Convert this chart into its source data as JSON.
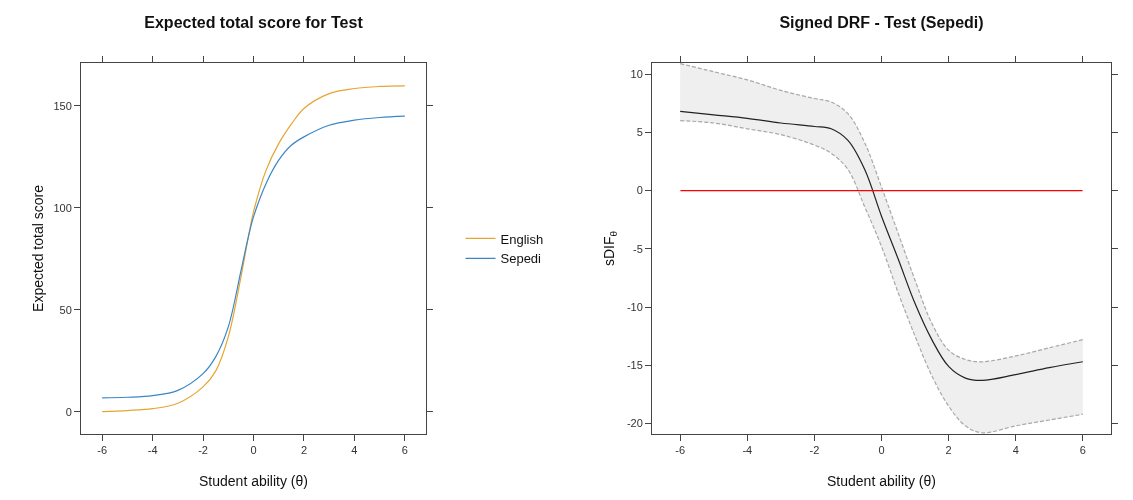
{
  "chart_data": [
    {
      "type": "line",
      "title": "Expected total score for Test",
      "xlabel": "Student ability (θ)",
      "ylabel": "Expected total score",
      "x": [
        -6,
        -5,
        -4,
        -3,
        -2,
        -1.5,
        -1,
        -0.5,
        -0.2,
        0,
        0.5,
        1,
        1.5,
        2,
        3,
        4,
        5,
        6
      ],
      "series": [
        {
          "name": "English",
          "color": "#e6a532",
          "values": [
            0.2,
            0.7,
            1.6,
            4.3,
            12.3,
            20,
            36.8,
            66,
            86,
            98,
            118.5,
            131.5,
            141,
            148.7,
            156,
            158.5,
            159.5,
            159.8
          ]
        },
        {
          "name": "Sepedi",
          "color": "#3a87c8",
          "values": [
            6.9,
            7.2,
            8,
            10.6,
            18.8,
            27,
            41.7,
            69,
            86,
            95.6,
            112,
            123.4,
            130.7,
            134.8,
            140.5,
            143,
            144.3,
            145
          ]
        }
      ],
      "xlim": [
        -6.84,
        6.84
      ],
      "ylim": [
        -10.8,
        171
      ],
      "xticks": [
        -6,
        -4,
        -2,
        0,
        2,
        4,
        6
      ],
      "yticks": [
        0,
        50,
        100,
        150
      ],
      "grid": false,
      "legend": "right"
    },
    {
      "type": "line",
      "title": "Signed DRF - Test (Sepedi)",
      "xlabel": "Student ability (θ)",
      "ylabel": "sDIF$_{θ}$",
      "x": [
        -6,
        -5,
        -4,
        -3,
        -2,
        -1.5,
        -1,
        -0.5,
        0,
        0.5,
        1,
        1.5,
        2,
        2.5,
        3,
        4,
        5,
        6
      ],
      "series": [
        {
          "color": "#222222",
          "values": [
            6.8,
            6.5,
            6.2,
            5.8,
            5.5,
            5.3,
            4.3,
            1.8,
            -2.2,
            -5.9,
            -9.7,
            -12.8,
            -15.1,
            -16.1,
            -16.3,
            -15.8,
            -15.2,
            -14.7
          ],
          "upper": [
            10.9,
            10.2,
            9.5,
            8.6,
            7.9,
            7.6,
            6.6,
            4.1,
            0.3,
            -3.7,
            -7.7,
            -11.4,
            -13.7,
            -14.5,
            -14.7,
            -14.2,
            -13.5,
            -12.8
          ],
          "lower": [
            6.0,
            5.8,
            5.3,
            4.8,
            3.9,
            3.2,
            1.8,
            -1.4,
            -4.8,
            -8.8,
            -12.5,
            -15.9,
            -18.5,
            -20.2,
            -20.8,
            -20.2,
            -19.7,
            -19.2
          ]
        },
        {
          "color": "#a8a8a8",
          "line_style": "dashed",
          "values": [
            10.9,
            10.2,
            9.5,
            8.6,
            7.9,
            7.6,
            6.6,
            4.1,
            0.3,
            -3.7,
            -7.7,
            -11.4,
            -13.7,
            -14.5,
            -14.7,
            -14.2,
            -13.5,
            -12.8
          ]
        },
        {
          "color": "#a8a8a8",
          "line_style": "dashed",
          "values": [
            6.0,
            5.8,
            5.3,
            4.8,
            3.9,
            3.2,
            1.8,
            -1.4,
            -4.8,
            -8.8,
            -12.5,
            -15.9,
            -18.5,
            -20.2,
            -20.8,
            -20.2,
            -19.7,
            -19.2
          ]
        }
      ],
      "ref_lines": [
        {
          "axis": "y",
          "value": 0,
          "color": "#ff0000"
        }
      ],
      "xlim": [
        -6.84,
        6.84
      ],
      "ylim": [
        -20.9,
        10.95
      ],
      "xticks": [
        -6,
        -4,
        -2,
        0,
        2,
        4,
        6
      ],
      "yticks": [
        -20,
        -15,
        -10,
        -5,
        0,
        5,
        10
      ],
      "grid": false,
      "legend": false
    }
  ]
}
